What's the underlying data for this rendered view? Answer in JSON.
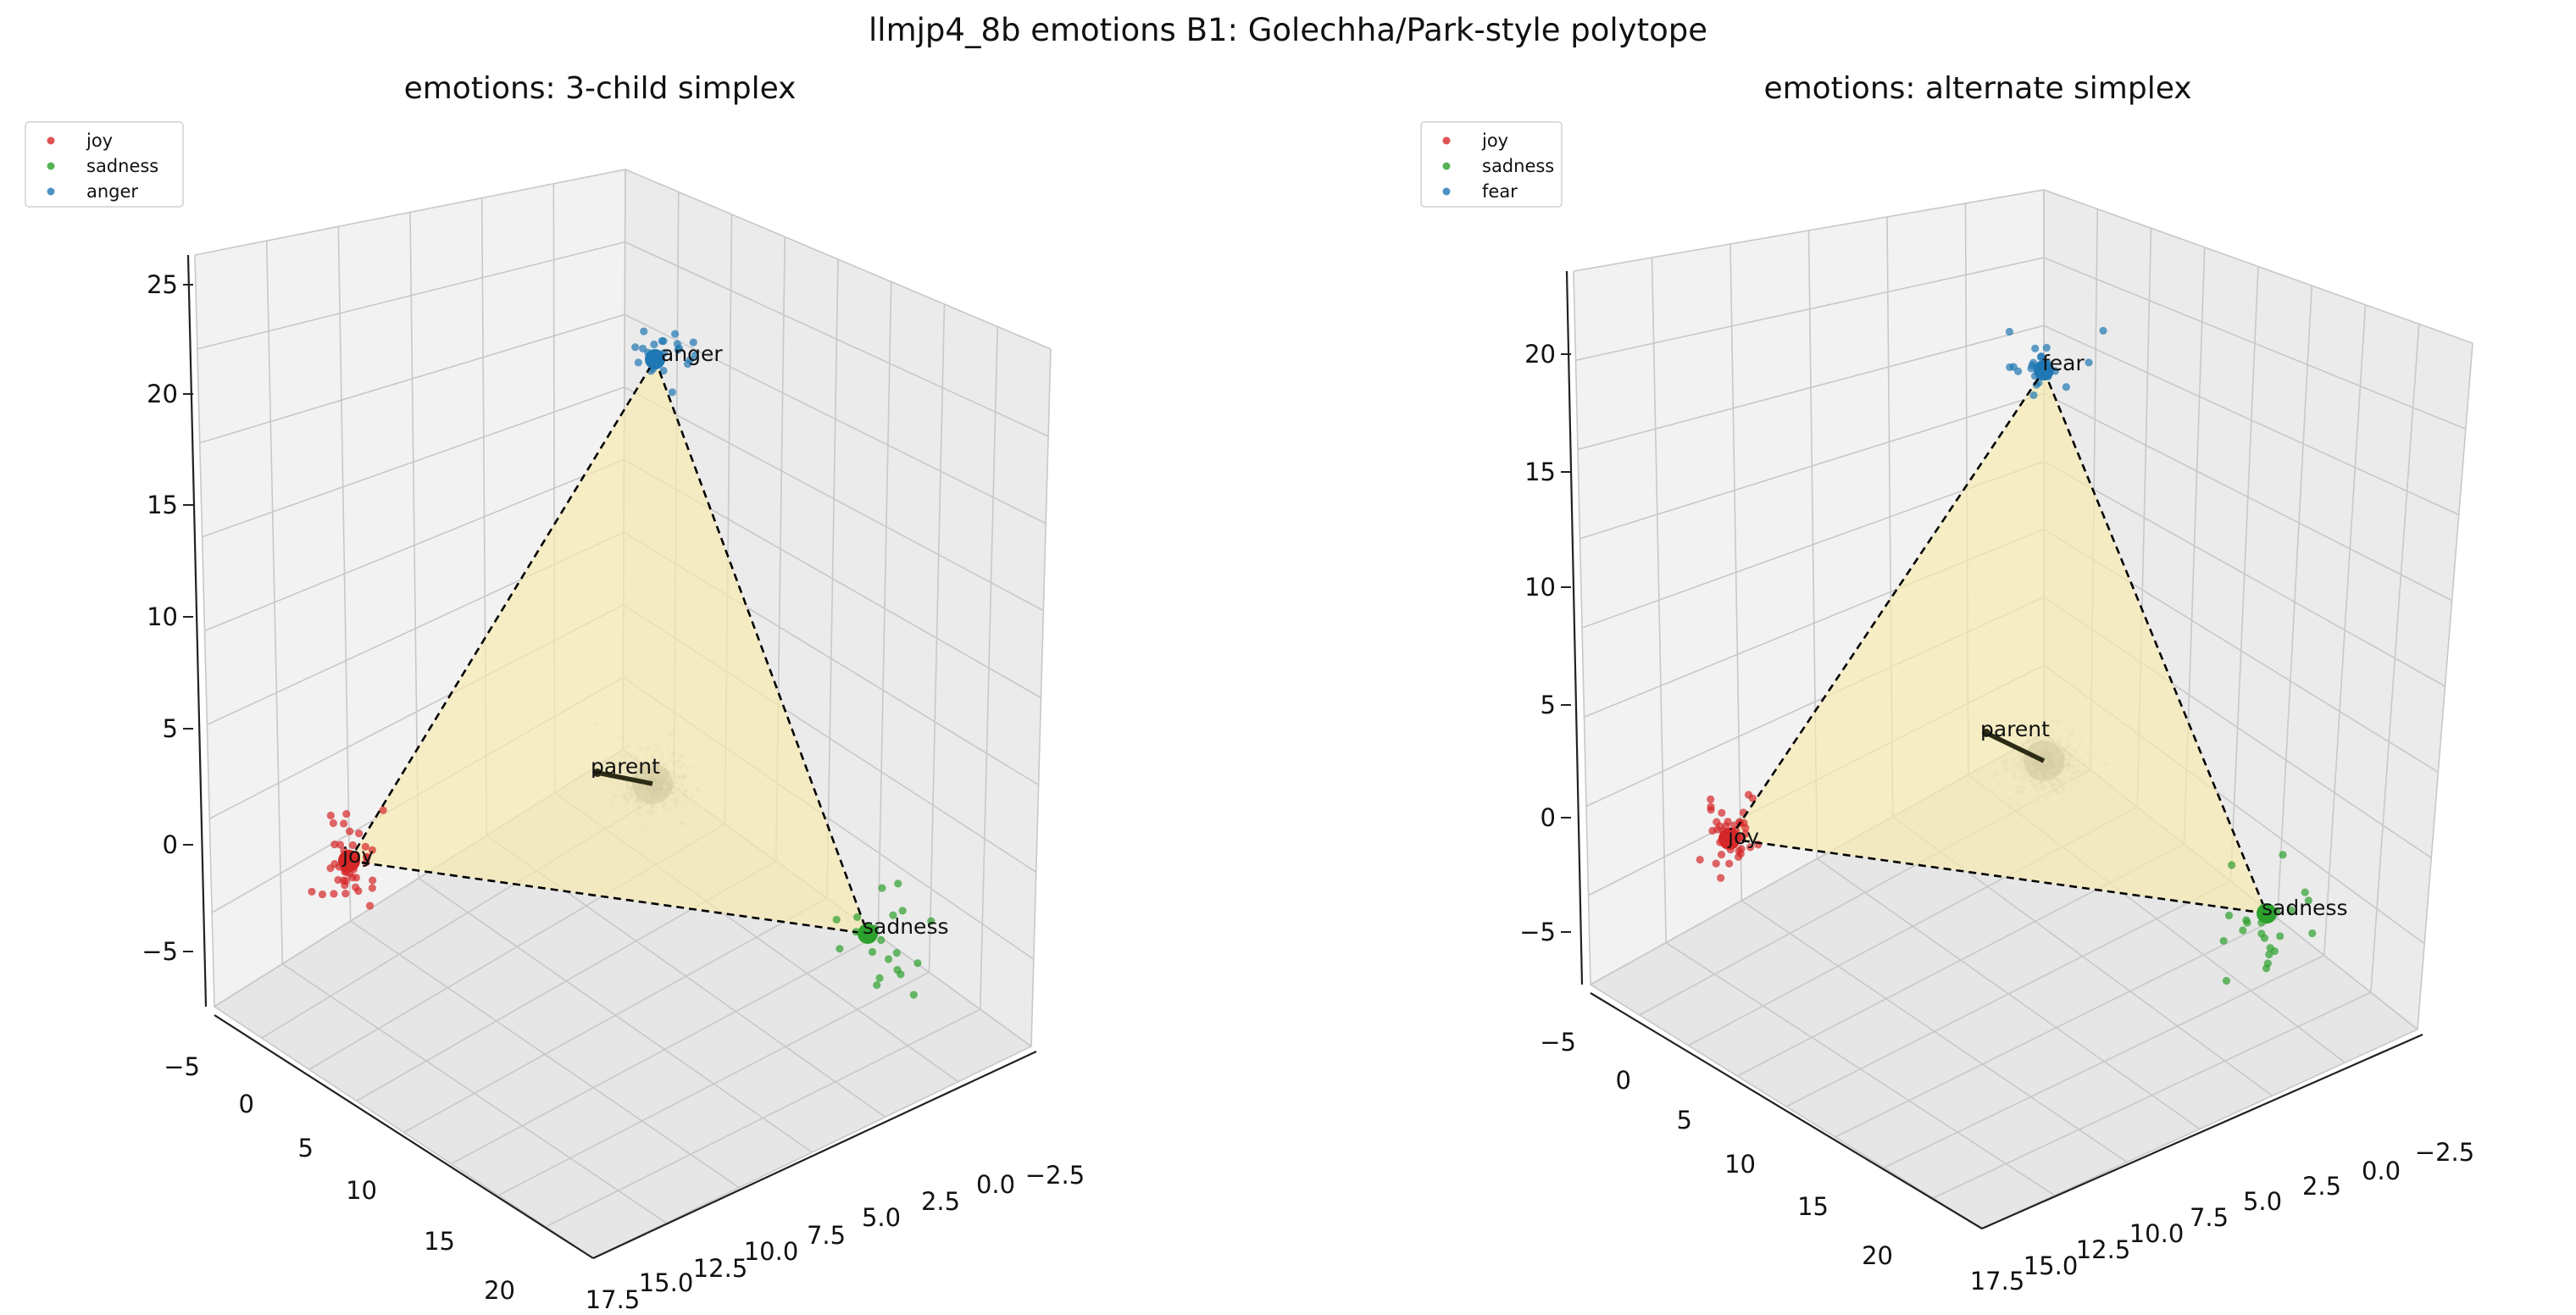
{
  "figure": {
    "title": "llmjp4_8b emotions B1: Golechha/Park-style polytope"
  },
  "colors": {
    "joy": "#d62728",
    "sadness": "#2ca02c",
    "anger": "#1f77b4",
    "fear": "#1f77b4",
    "simplex_fill": "#f7eab0",
    "parent_cloud": "#808080",
    "edge": "#000000"
  },
  "chart_data": [
    {
      "type": "scatter",
      "subtype": "3d-scatter-with-simplex",
      "title": "emotions: 3-child simplex",
      "legend": {
        "placement": "top-left",
        "entries": [
          "joy",
          "sadness",
          "anger"
        ]
      },
      "grid": true,
      "axes": {
        "x": {
          "ticks": [
            "17.5",
            "15.0",
            "12.5",
            "10.0",
            "7.5",
            "5.0",
            "2.5",
            "0.0",
            "−2.5"
          ]
        },
        "y": {
          "ticks": [
            "−5",
            "0",
            "5",
            "10",
            "15",
            "20"
          ]
        },
        "z": {
          "ticks": [
            "−5",
            "0",
            "5",
            "10",
            "15",
            "20",
            "25"
          ],
          "range": [
            -8,
            26
          ]
        }
      },
      "vertices": [
        {
          "name": "joy",
          "label": "joy"
        },
        {
          "name": "sadness",
          "label": "sadness"
        },
        {
          "name": "anger",
          "label": "anger"
        }
      ],
      "parent": {
        "label": "parent"
      }
    },
    {
      "type": "scatter",
      "subtype": "3d-scatter-with-simplex",
      "title": "emotions: alternate simplex",
      "legend": {
        "placement": "top-left",
        "entries": [
          "joy",
          "sadness",
          "fear"
        ]
      },
      "grid": true,
      "axes": {
        "x": {
          "ticks": [
            "17.5",
            "15.0",
            "12.5",
            "10.0",
            "7.5",
            "5.0",
            "2.5",
            "0.0",
            "−2.5"
          ]
        },
        "y": {
          "ticks": [
            "−5",
            "0",
            "5",
            "10",
            "15",
            "20"
          ]
        },
        "z": {
          "ticks": [
            "−5",
            "0",
            "5",
            "10",
            "15",
            "20"
          ],
          "range": [
            -7,
            23
          ]
        }
      },
      "vertices": [
        {
          "name": "joy",
          "label": "joy"
        },
        {
          "name": "sadness",
          "label": "sadness"
        },
        {
          "name": "fear",
          "label": "fear"
        }
      ],
      "parent": {
        "label": "parent"
      }
    }
  ]
}
